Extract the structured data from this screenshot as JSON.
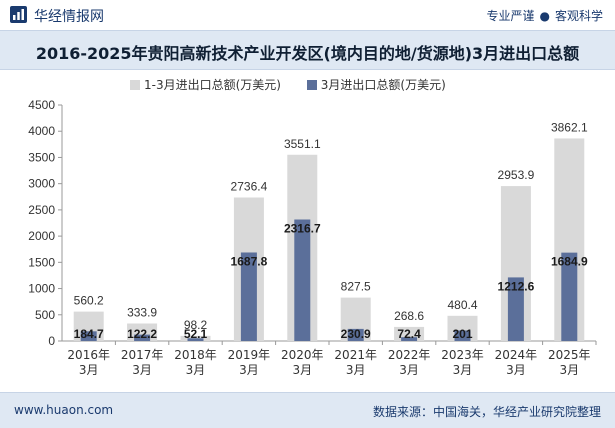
{
  "header": {
    "brand": "华经情报网",
    "tagline_left": "专业严谨",
    "tagline_sep": "●",
    "tagline_right": "客观科学"
  },
  "chart_data": {
    "type": "bar",
    "title": "2016-2025年贵阳高新技术产业开发区(境内目的地/货源地)3月进出口总额",
    "categories": [
      "2016年3月",
      "2017年3月",
      "2018年3月",
      "2019年3月",
      "2020年3月",
      "2021年3月",
      "2022年3月",
      "2023年3月",
      "2024年3月",
      "2025年3月"
    ],
    "category_lines": [
      [
        "2016年",
        "3月"
      ],
      [
        "2017年",
        "3月"
      ],
      [
        "2018年",
        "3月"
      ],
      [
        "2019年",
        "3月"
      ],
      [
        "2020年",
        "3月"
      ],
      [
        "2021年",
        "3月"
      ],
      [
        "2022年",
        "3月"
      ],
      [
        "2023年",
        "3月"
      ],
      [
        "2024年",
        "3月"
      ],
      [
        "2025年",
        "3月"
      ]
    ],
    "series": [
      {
        "name": "1-3月进出口总额(万美元)",
        "color": "#d9d9d9",
        "values": [
          560.2,
          333.9,
          98.2,
          2736.4,
          3551.1,
          827.5,
          268.6,
          480.4,
          2953.9,
          3862.1
        ]
      },
      {
        "name": "3月进出口总额(万美元)",
        "color": "#5b6f9a",
        "values": [
          184.7,
          122.2,
          52.1,
          1687.8,
          2316.7,
          230.9,
          72.4,
          201,
          1212.6,
          1684.9
        ]
      }
    ],
    "value_labels": [
      [
        "560.2",
        "333.9",
        "98.2",
        "2736.4",
        "3551.1",
        "827.5",
        "268.6",
        "480.4",
        "2953.9",
        "3862.1"
      ],
      [
        "184.7",
        "122.2",
        "52.1",
        "1687.8",
        "2316.7",
        "230.9",
        "72.4",
        "201",
        "1212.6",
        "1684.9"
      ]
    ],
    "ylim": [
      0,
      4500
    ],
    "yticks": [
      0,
      500,
      1000,
      1500,
      2000,
      2500,
      3000,
      3500,
      4000,
      4500
    ],
    "ytick_labels": [
      "0",
      "500",
      "1000",
      "1500",
      "2000",
      "2500",
      "3000",
      "3500",
      "4000",
      "4500"
    ],
    "grid": false,
    "legend_position": "top"
  },
  "footer": {
    "url": "www.huaon.com",
    "source": "数据来源：中国海关，华经产业研究院整理"
  }
}
